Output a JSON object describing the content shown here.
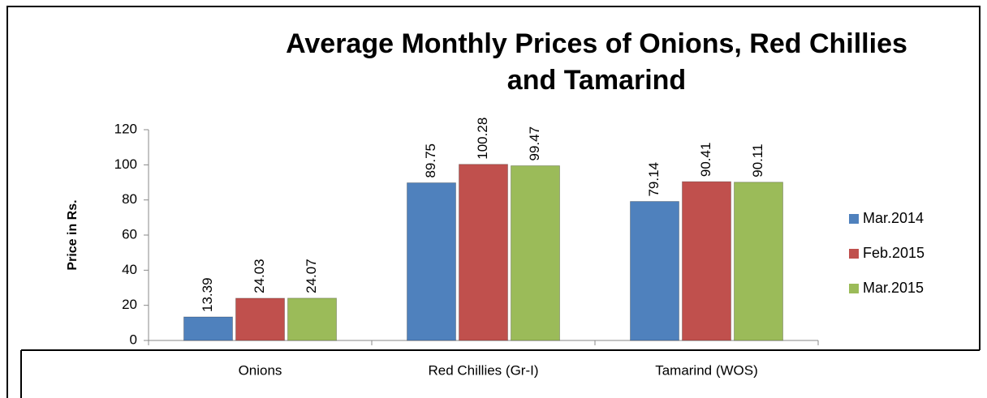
{
  "chart_data": {
    "type": "bar",
    "title": "Average Monthly Prices of Onions, Red Chillies and Tamarind",
    "y_label": "Price in Rs.",
    "categories": [
      "Onions",
      "Red Chillies (Gr-I)",
      "Tamarind (WOS)"
    ],
    "series": [
      {
        "name": "Mar.2014",
        "color": "#4f81bd",
        "values": [
          13.39,
          89.75,
          79.14
        ]
      },
      {
        "name": "Feb.2015",
        "color": "#c0504d",
        "values": [
          24.03,
          100.28,
          90.41
        ]
      },
      {
        "name": "Mar.2015",
        "color": "#9bbb59",
        "values": [
          24.07,
          99.47,
          90.11
        ]
      }
    ],
    "ylim": [
      0,
      120
    ],
    "yticks": [
      0,
      20,
      40,
      60,
      80,
      100,
      120
    ],
    "legend": "right"
  }
}
